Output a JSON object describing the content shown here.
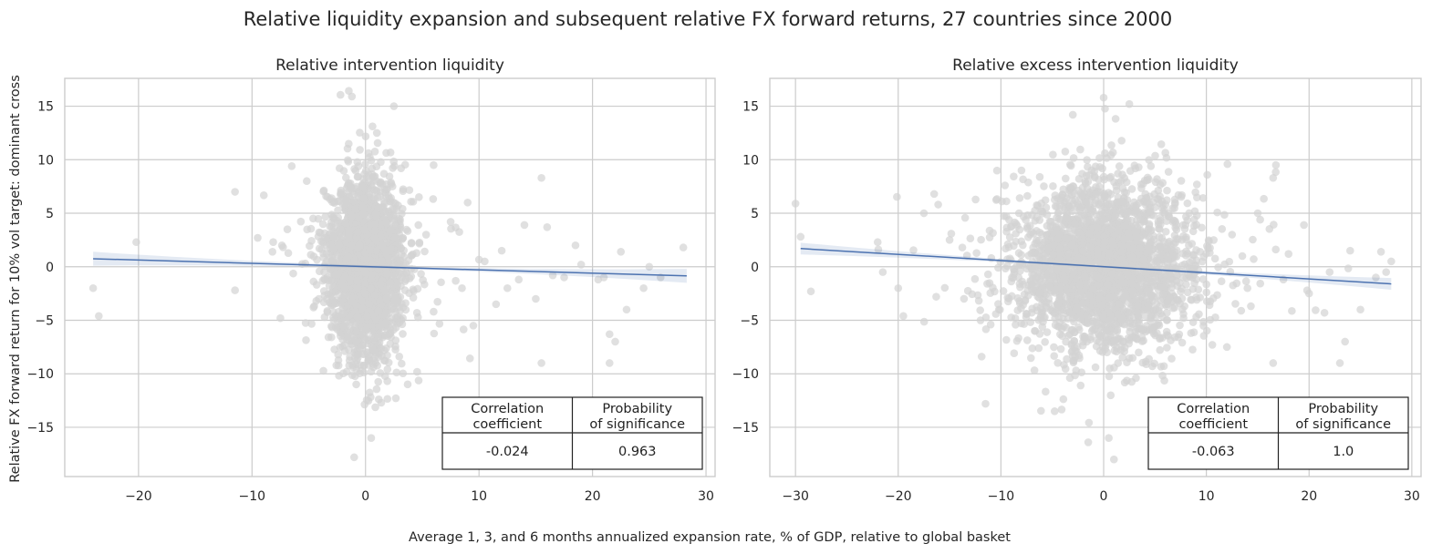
{
  "figure": {
    "title": "Relative liquidity expansion and subsequent relative FX forward returns, 27 countries since 2000",
    "xlabel": "Average 1, 3, and 6 months annualized expansion rate, % of GDP, relative to global basket",
    "ylabel": "Relative FX forward return for 10% vol target: dominant cross"
  },
  "colors": {
    "points": "#d3d3d3",
    "regression": "#4c72b0",
    "grid": "#cccccc"
  },
  "chart_data": [
    {
      "type": "scatter",
      "title": "Relative intervention liquidity",
      "xlim": [
        -26.5,
        30.8
      ],
      "ylim": [
        -19.6,
        17.6
      ],
      "xticks": [
        -20,
        -10,
        0,
        10,
        20,
        30
      ],
      "xtick_labels": [
        "−20",
        "−10",
        "0",
        "10",
        "20",
        "30"
      ],
      "yticks": [
        -15,
        -10,
        -5,
        0,
        5,
        10,
        15
      ],
      "ytick_labels": [
        "−15",
        "−10",
        "−5",
        "0",
        "5",
        "10",
        "15"
      ],
      "regression": {
        "x": [
          -24,
          28.3
        ],
        "y": [
          0.75,
          -0.85
        ],
        "ci_halfwidth_edges": 0.65,
        "ci_halfwidth_center": 0.12
      },
      "cloud": {
        "center_x": 0,
        "center_y": 0,
        "sd_x": 1.6,
        "sd_y": 4.2,
        "count": 2200
      },
      "outliers": [
        [
          -24,
          -2
        ],
        [
          -23.5,
          -4.6
        ],
        [
          -20.2,
          2.3
        ],
        [
          -11.5,
          7.0
        ],
        [
          -11.5,
          -2.2
        ],
        [
          -7.5,
          -4.8
        ],
        [
          -9.5,
          2.7
        ],
        [
          -8.2,
          1.4
        ],
        [
          -6.5,
          9.4
        ],
        [
          -5.3,
          0.3
        ],
        [
          2.5,
          15.0
        ],
        [
          -1.2,
          15.9
        ],
        [
          1.0,
          12.5
        ],
        [
          -1.0,
          -17.8
        ],
        [
          0.5,
          -16.0
        ],
        [
          6.0,
          9.5
        ],
        [
          9.0,
          6.0
        ],
        [
          10.5,
          0.5
        ],
        [
          12.0,
          1.5
        ],
        [
          14.0,
          3.9
        ],
        [
          15.5,
          8.3
        ],
        [
          15.5,
          -9.0
        ],
        [
          16.0,
          3.7
        ],
        [
          18.5,
          2.0
        ],
        [
          19.0,
          0.2
        ],
        [
          20.5,
          -1.2
        ],
        [
          21.0,
          -1.0
        ],
        [
          21.5,
          -6.3
        ],
        [
          21.5,
          -9.0
        ],
        [
          22.0,
          -7.0
        ],
        [
          23.0,
          -4.0
        ],
        [
          24.5,
          -2.0
        ],
        [
          25.0,
          0.0
        ],
        [
          26.0,
          -1.0
        ],
        [
          28.0,
          1.8
        ],
        [
          9.5,
          -5.5
        ],
        [
          11.5,
          -3.5
        ],
        [
          12.5,
          -2.0
        ],
        [
          13.5,
          -1.2
        ],
        [
          16.5,
          -0.8
        ],
        [
          17.5,
          -1.0
        ],
        [
          22.5,
          1.4
        ],
        [
          15.0,
          -3.0
        ],
        [
          7.5,
          4.2
        ],
        [
          8.5,
          -2.0
        ],
        [
          6.0,
          -4.2
        ]
      ],
      "stats_table": {
        "headers": [
          "Correlation\ncoefficient",
          "Probability\nof significance"
        ],
        "values": [
          "-0.024",
          "0.963"
        ]
      }
    },
    {
      "type": "scatter",
      "title": "Relative excess intervention liquidity",
      "xlim": [
        -32.5,
        30.9
      ],
      "ylim": [
        -19.6,
        17.6
      ],
      "xticks": [
        -30,
        -20,
        -10,
        0,
        10,
        20,
        30
      ],
      "xtick_labels": [
        "−30",
        "−20",
        "−10",
        "0",
        "10",
        "20",
        "30"
      ],
      "yticks": [
        -15,
        -10,
        -5,
        0,
        5,
        10,
        15
      ],
      "ytick_labels": [
        "−15",
        "−10",
        "−5",
        "0",
        "5",
        "10",
        "15"
      ],
      "regression": {
        "x": [
          -29.5,
          28
        ],
        "y": [
          1.7,
          -1.6
        ],
        "ci_halfwidth_edges": 0.55,
        "ci_halfwidth_center": 0.1
      },
      "cloud": {
        "center_x": 0,
        "center_y": 0,
        "sd_x": 4.2,
        "sd_y": 4.0,
        "count": 2600
      },
      "outliers": [
        [
          -30,
          5.9
        ],
        [
          -29.5,
          2.8
        ],
        [
          -28.5,
          -2.3
        ],
        [
          -22,
          2.3
        ],
        [
          -21.5,
          -0.5
        ],
        [
          -20,
          -2.0
        ],
        [
          -19.5,
          -4.6
        ],
        [
          -16.5,
          6.8
        ],
        [
          -17.5,
          5.0
        ],
        [
          -15,
          2.5
        ],
        [
          -11.5,
          -12.8
        ],
        [
          -11.0,
          -5.4
        ],
        [
          -8.0,
          9.0
        ],
        [
          0.0,
          15.8
        ],
        [
          -3.0,
          14.2
        ],
        [
          2.5,
          15.2
        ],
        [
          1.0,
          -18.0
        ],
        [
          -1.5,
          -16.4
        ],
        [
          0.5,
          -16.0
        ],
        [
          12.5,
          3.0
        ],
        [
          16.5,
          8.3
        ],
        [
          16.5,
          -9.0
        ],
        [
          19.5,
          3.9
        ],
        [
          21.5,
          -4.3
        ],
        [
          23.5,
          -7.0
        ],
        [
          23.0,
          -9.0
        ],
        [
          24.0,
          1.5
        ],
        [
          26.5,
          -1.0
        ],
        [
          27.5,
          -0.5
        ],
        [
          27.0,
          1.4
        ],
        [
          28.0,
          0.5
        ],
        [
          14.0,
          -2.0
        ],
        [
          18.0,
          1.2
        ],
        [
          20.0,
          -2.5
        ],
        [
          22.0,
          -0.5
        ],
        [
          25.0,
          -4.0
        ],
        [
          12.0,
          -7.5
        ],
        [
          15.0,
          5.0
        ],
        [
          13.5,
          1.0
        ],
        [
          17.5,
          -1.2
        ]
      ],
      "stats_table": {
        "headers": [
          "Correlation\ncoefficient",
          "Probability\nof significance"
        ],
        "values": [
          "-0.063",
          "1.0"
        ]
      }
    }
  ]
}
